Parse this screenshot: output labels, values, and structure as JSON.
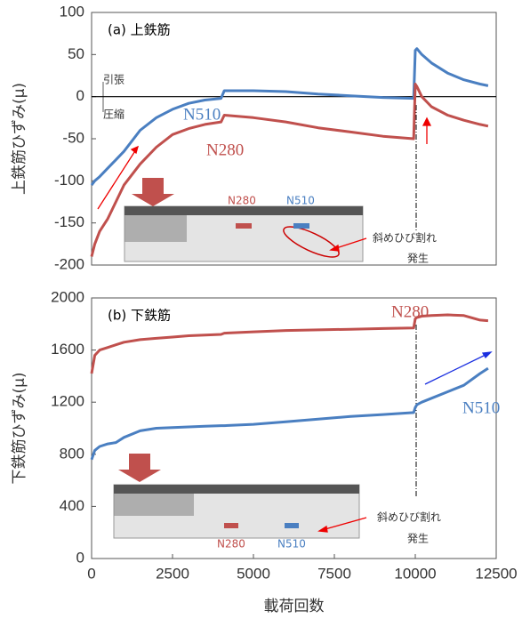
{
  "chart_data": [
    {
      "type": "line",
      "title": "(a) 上鉄筋",
      "ylabel": "上鉄筋ひずみ(μ)",
      "x": [
        0,
        100,
        250,
        500,
        750,
        1000,
        1500,
        2000,
        2500,
        3000,
        3500,
        4000,
        4100,
        5000,
        6000,
        7000,
        8000,
        9000,
        9950,
        10000,
        10050,
        10200,
        10500,
        11000,
        11500,
        12000,
        12250
      ],
      "series": [
        {
          "name": "N510",
          "color": "#4a7fc1",
          "values": [
            -105,
            -100,
            -95,
            -85,
            -75,
            -65,
            -40,
            -25,
            -15,
            -8,
            -4,
            -2,
            7,
            7,
            6,
            3,
            1,
            -1,
            -2,
            55,
            57,
            50,
            40,
            28,
            20,
            15,
            13
          ]
        },
        {
          "name": "N280",
          "color": "#c0504d",
          "values": [
            -190,
            -175,
            -160,
            -145,
            -125,
            -105,
            -80,
            -60,
            -45,
            -38,
            -33,
            -30,
            -22,
            -25,
            -30,
            -37,
            -42,
            -47,
            -50,
            15,
            12,
            0,
            -12,
            -22,
            -28,
            -33,
            -35
          ]
        }
      ],
      "xlim": [
        0,
        12500
      ],
      "ylim": [
        -200,
        100
      ],
      "yticks": [
        -200,
        -150,
        -100,
        -50,
        0,
        50,
        100
      ],
      "annotations": [
        "引張",
        "圧縮",
        "N280",
        "N510",
        "斜めひび割れ",
        "発生"
      ]
    },
    {
      "type": "line",
      "title": "(b) 下鉄筋",
      "ylabel": "下鉄筋ひずみ(μ)",
      "xlabel": "載荷回数",
      "x": [
        0,
        100,
        250,
        500,
        750,
        1000,
        1500,
        2000,
        2500,
        3000,
        3500,
        4000,
        4100,
        5000,
        6000,
        7000,
        8000,
        9000,
        9950,
        10000,
        10050,
        10200,
        10500,
        11000,
        11500,
        12000,
        12250
      ],
      "series": [
        {
          "name": "N280",
          "color": "#c0504d",
          "values": [
            1420,
            1560,
            1600,
            1620,
            1640,
            1660,
            1680,
            1690,
            1700,
            1710,
            1715,
            1720,
            1730,
            1740,
            1750,
            1755,
            1760,
            1765,
            1770,
            1840,
            1850,
            1860,
            1865,
            1870,
            1865,
            1830,
            1825
          ]
        },
        {
          "name": "N510",
          "color": "#4a7fc1",
          "values": [
            760,
            830,
            860,
            880,
            890,
            930,
            980,
            1000,
            1005,
            1010,
            1015,
            1020,
            1020,
            1030,
            1050,
            1070,
            1090,
            1105,
            1120,
            1160,
            1180,
            1200,
            1230,
            1280,
            1330,
            1420,
            1460
          ]
        }
      ],
      "xlim": [
        0,
        12500
      ],
      "ylim": [
        0,
        2000
      ],
      "xticks": [
        0,
        2500,
        5000,
        7500,
        10000,
        12500
      ],
      "yticks": [
        0,
        400,
        800,
        1200,
        1600,
        2000
      ],
      "annotations": [
        "N280",
        "N510",
        "斜めひび割れ",
        "発生"
      ]
    }
  ]
}
